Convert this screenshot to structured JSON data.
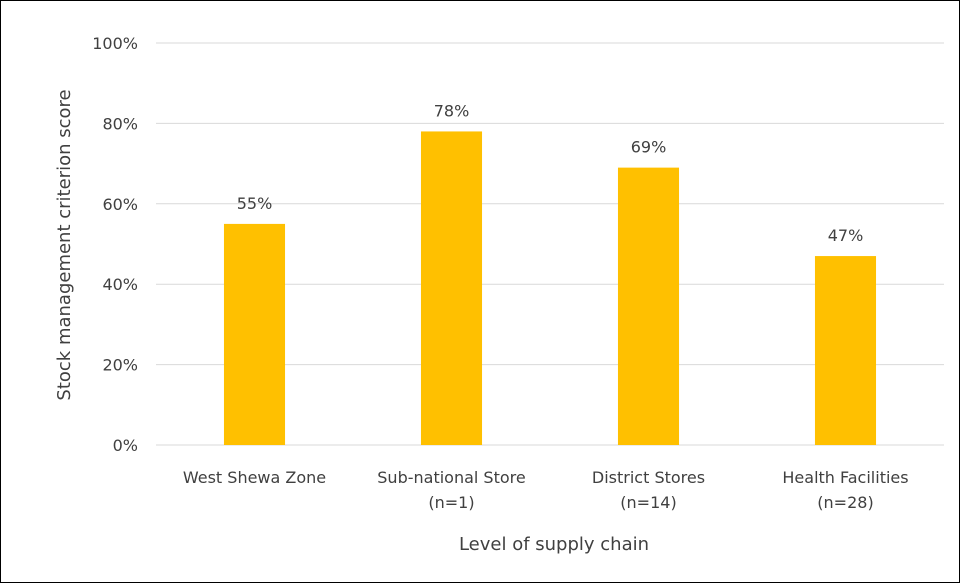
{
  "chart_data": {
    "type": "bar",
    "title": "",
    "xlabel": "Level of supply chain",
    "ylabel": "Stock management criterion score",
    "categories": [
      [
        "West Shewa Zone"
      ],
      [
        "Sub-national Store",
        "(n=1)"
      ],
      [
        "District Stores",
        "(n=14)"
      ],
      [
        "Health Facilities",
        "(n=28)"
      ]
    ],
    "values": [
      55,
      78,
      69,
      47
    ],
    "data_labels": [
      "55%",
      "78%",
      "69%",
      "47%"
    ],
    "yticks": [
      "0%",
      "20%",
      "40%",
      "60%",
      "80%",
      "100%"
    ],
    "ylim": [
      0,
      100
    ],
    "grid": true,
    "legend": "none",
    "colors": {
      "bar": "#FFC000",
      "grid": "#D9D9D9",
      "text": "#404040"
    }
  }
}
